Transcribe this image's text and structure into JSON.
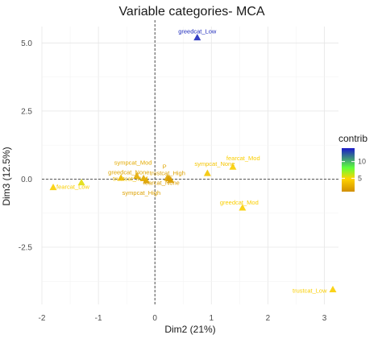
{
  "chart_data": {
    "type": "scatter",
    "title": "Variable categories- MCA",
    "xlabel": "Dim2 (21%)",
    "ylabel": "Dim3 (12.5%)",
    "xlim": [
      -2,
      3.25
    ],
    "ylim": [
      -4.6,
      5.6
    ],
    "xticks": [
      -2,
      -1,
      0,
      1,
      2,
      3
    ],
    "yticks": [
      5.0,
      2.5,
      0.0,
      -2.5
    ],
    "ytick_labels": [
      "5.0",
      "2.5",
      "0.0",
      "-2.5"
    ],
    "grid": true,
    "reference_lines": {
      "x": 0,
      "y": 0,
      "style": "dashed"
    },
    "legend": {
      "title": "contrib",
      "ticks": [
        5,
        10
      ],
      "range": [
        1,
        14
      ],
      "placement": "right"
    },
    "color_scale": [
      "#d18f00",
      "#ffd500",
      "#5eff3a",
      "#1a18c8"
    ],
    "points": [
      {
        "label": "greedcat_Low",
        "x": 0.75,
        "y": 5.2,
        "contrib": 13.5
      },
      {
        "label": "fearcat_Mod",
        "x": 1.38,
        "y": 0.45,
        "contrib": 4.5
      },
      {
        "label": "sympcat_None",
        "x": 0.93,
        "y": 0.22,
        "contrib": 4.0
      },
      {
        "label": "P",
        "x": 0.22,
        "y": 0.05,
        "contrib": 2.2
      },
      {
        "label": "trustcat_High",
        "x": 0.25,
        "y": 0.03,
        "contrib": 2.0
      },
      {
        "label": "fearcat_None",
        "x": 0.28,
        "y": -0.03,
        "contrib": 1.8
      },
      {
        "label": "sympcat_Mod",
        "x": -0.32,
        "y": 0.12,
        "contrib": 2.5
      },
      {
        "label": "greedcat_None",
        "x": -0.2,
        "y": 0.03,
        "contrib": 2.3
      },
      {
        "label": "trustcat_Mod",
        "x": -0.6,
        "y": 0.05,
        "contrib": 3.5
      },
      {
        "label": "sympcat_High",
        "x": -0.15,
        "y": -0.05,
        "contrib": 2.0
      },
      {
        "label": "",
        "x": -1.3,
        "y": -0.12,
        "contrib": 5.5
      },
      {
        "label": "fearcat_Low",
        "x": -1.8,
        "y": -0.3,
        "contrib": 4.5
      },
      {
        "label": "greedcat_Mod",
        "x": 1.55,
        "y": -1.05,
        "contrib": 4.5
      },
      {
        "label": "trustcat_Low",
        "x": 3.15,
        "y": -4.05,
        "contrib": 4.5
      }
    ]
  }
}
